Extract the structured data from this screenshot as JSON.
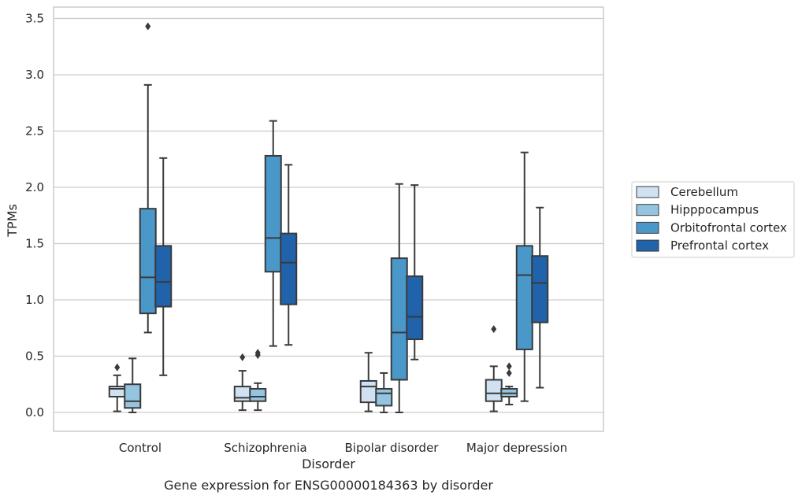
{
  "chart_data": {
    "type": "boxplot",
    "title": "",
    "caption": "Gene expression for ENSG00000184363 by disorder",
    "xlabel": "Disorder",
    "ylabel": "TPMs",
    "ylim": [
      -0.17,
      3.6
    ],
    "yticks": [
      0.0,
      0.5,
      1.0,
      1.5,
      2.0,
      2.5,
      3.0,
      3.5
    ],
    "ytick_labels": [
      "0.0",
      "0.5",
      "1.0",
      "1.5",
      "2.0",
      "2.5",
      "3.0",
      "3.5"
    ],
    "grid": "horizontal",
    "legend_position": "right, outside plot",
    "categories": [
      "Control",
      "Schizophrenia",
      "Bipolar disorder",
      "Major depression"
    ],
    "series": [
      {
        "name": "Cerebellum",
        "color": "#d0e1f2",
        "boxes": [
          {
            "whisker_low": 0.01,
            "q1": 0.14,
            "median": 0.21,
            "q3": 0.23,
            "whisker_high": 0.33,
            "outliers": [
              0.4
            ]
          },
          {
            "whisker_low": 0.02,
            "q1": 0.1,
            "median": 0.13,
            "q3": 0.23,
            "whisker_high": 0.37,
            "outliers": [
              0.49
            ]
          },
          {
            "whisker_low": 0.01,
            "q1": 0.09,
            "median": 0.23,
            "q3": 0.28,
            "whisker_high": 0.53,
            "outliers": []
          },
          {
            "whisker_low": 0.01,
            "q1": 0.1,
            "median": 0.17,
            "q3": 0.29,
            "whisker_high": 0.41,
            "outliers": [
              0.74
            ]
          }
        ]
      },
      {
        "name": "Hipppocampus",
        "color": "#94c4df",
        "boxes": [
          {
            "whisker_low": 0.0,
            "q1": 0.04,
            "median": 0.1,
            "q3": 0.25,
            "whisker_high": 0.48,
            "outliers": []
          },
          {
            "whisker_low": 0.02,
            "q1": 0.1,
            "median": 0.14,
            "q3": 0.21,
            "whisker_high": 0.26,
            "outliers": [
              0.51,
              0.53
            ]
          },
          {
            "whisker_low": 0.0,
            "q1": 0.06,
            "median": 0.17,
            "q3": 0.21,
            "whisker_high": 0.35,
            "outliers": []
          },
          {
            "whisker_low": 0.07,
            "q1": 0.14,
            "median": 0.17,
            "q3": 0.21,
            "whisker_high": 0.23,
            "outliers": [
              0.35,
              0.41
            ]
          }
        ]
      },
      {
        "name": "Orbitofrontal cortex",
        "color": "#4a98c9",
        "boxes": [
          {
            "whisker_low": 0.71,
            "q1": 0.88,
            "median": 1.2,
            "q3": 1.81,
            "whisker_high": 2.91,
            "outliers": [
              3.43
            ]
          },
          {
            "whisker_low": 0.59,
            "q1": 1.25,
            "median": 1.55,
            "q3": 2.28,
            "whisker_high": 2.59,
            "outliers": []
          },
          {
            "whisker_low": 0.0,
            "q1": 0.29,
            "median": 0.71,
            "q3": 1.37,
            "whisker_high": 2.03,
            "outliers": []
          },
          {
            "whisker_low": 0.1,
            "q1": 0.56,
            "median": 1.22,
            "q3": 1.48,
            "whisker_high": 2.31,
            "outliers": []
          }
        ]
      },
      {
        "name": "Prefrontal cortex",
        "color": "#2163aa",
        "boxes": [
          {
            "whisker_low": 0.33,
            "q1": 0.94,
            "median": 1.16,
            "q3": 1.48,
            "whisker_high": 2.26,
            "outliers": []
          },
          {
            "whisker_low": 0.6,
            "q1": 0.96,
            "median": 1.33,
            "q3": 1.59,
            "whisker_high": 2.2,
            "outliers": []
          },
          {
            "whisker_low": 0.47,
            "q1": 0.65,
            "median": 0.85,
            "q3": 1.21,
            "whisker_high": 2.02,
            "outliers": []
          },
          {
            "whisker_low": 0.22,
            "q1": 0.8,
            "median": 1.15,
            "q3": 1.39,
            "whisker_high": 1.82,
            "outliers": []
          }
        ]
      }
    ]
  }
}
